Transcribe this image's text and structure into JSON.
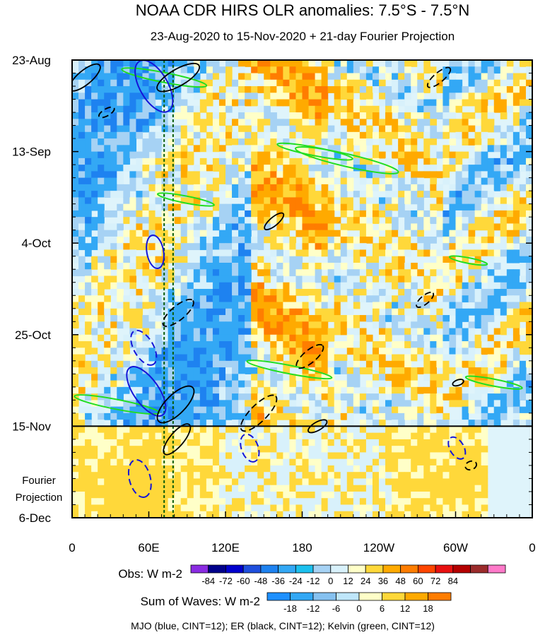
{
  "chart_data": {
    "type": "heatmap",
    "title": "NOAA CDR HIRS OLR anomalies: 7.5°S - 7.5°N",
    "subtitle": "23-Aug-2020 to 15-Nov-2020 + 21-day Fourier Projection",
    "x_ticks": [
      {
        "lon": 0,
        "label": "0"
      },
      {
        "lon": 60,
        "label": "60E"
      },
      {
        "lon": 120,
        "label": "120E"
      },
      {
        "lon": 180,
        "label": "180"
      },
      {
        "lon": 240,
        "label": "120W"
      },
      {
        "lon": 300,
        "label": "60W"
      },
      {
        "lon": 360,
        "label": "0"
      }
    ],
    "xlim": [
      0,
      360
    ],
    "y_ticks": [
      {
        "day": 0,
        "label": "23-Aug"
      },
      {
        "day": 21,
        "label": "13-Sep"
      },
      {
        "day": 42,
        "label": "4-Oct"
      },
      {
        "day": 63,
        "label": "25-Oct"
      },
      {
        "day": 84,
        "label": "15-Nov"
      },
      {
        "day": 105,
        "label": "6-Dec"
      }
    ],
    "ylim": [
      0,
      105
    ],
    "projection_start_day": 84,
    "projection_label_lines": [
      "Fourier",
      "Projection"
    ],
    "dashed_meridians_lon": [
      72,
      79
    ],
    "obs_colorbar": {
      "label": "Obs: W m-2",
      "ticks": [
        "-84",
        "-72",
        "-60",
        "-48",
        "-36",
        "-24",
        "-12",
        "0",
        "12",
        "24",
        "36",
        "48",
        "60",
        "72",
        "84"
      ],
      "colors": [
        "#8a2be2",
        "#00008b",
        "#0000cd",
        "#1f4fdd",
        "#1e82f0",
        "#33a8f5",
        "#1cc0ee",
        "#a6d2f4",
        "#d8f1fb",
        "#ffffc8",
        "#ffd83a",
        "#ffaa00",
        "#ff7d00",
        "#ff4500",
        "#e81010",
        "#b40000",
        "#9b2b2b",
        "#ff79c9"
      ]
    },
    "waves_colorbar": {
      "label": "Sum of Waves: W m-2",
      "ticks": [
        "-18",
        "-12",
        "-6",
        "0",
        "6",
        "12",
        "18"
      ],
      "colors": [
        "#1e90ff",
        "#33a8f5",
        "#86c1f0",
        "#bfe6fb",
        "#ffffc8",
        "#ffd83a",
        "#ffaa00",
        "#ff7d00"
      ]
    },
    "footer": "MJO (blue, CINT=12); ER (black, CINT=12); Kelvin (green, CINT=12)",
    "colors": {
      "mjo": "#1515d8",
      "er": "#000000",
      "kelvin": "#22dd22",
      "dashed_meridian": "#0a5c0a"
    },
    "mjo_contours": [
      {
        "lon": 64,
        "day": 6,
        "a": 6,
        "b": 2.0,
        "deg": 60,
        "dashed": false
      },
      {
        "lon": 58,
        "day": 76,
        "a": 6,
        "b": 1.8,
        "deg": 55,
        "dashed": false
      },
      {
        "lon": 65,
        "day": 44,
        "a": 3.5,
        "b": 1.2,
        "deg": 80,
        "dashed": false
      },
      {
        "lon": 56,
        "day": 66,
        "a": 4,
        "b": 1.4,
        "deg": 60,
        "dashed": true
      },
      {
        "lon": 53,
        "day": 96,
        "a": 4,
        "b": 1.5,
        "deg": 75,
        "dashed": true
      },
      {
        "lon": 139,
        "day": 89,
        "a": 3,
        "b": 1.2,
        "deg": 70,
        "dashed": true
      },
      {
        "lon": 301,
        "day": 89,
        "a": 2.5,
        "b": 1.0,
        "deg": 60,
        "dashed": true
      }
    ],
    "er_contours": [
      {
        "lon": 10,
        "day": 4,
        "a": 4,
        "b": 1.0,
        "deg": -40,
        "dashed": false
      },
      {
        "lon": 27,
        "day": 12,
        "a": 1.8,
        "b": 0.5,
        "deg": -30,
        "dashed": true
      },
      {
        "lon": 83,
        "day": 4,
        "a": 5,
        "b": 1.2,
        "deg": -30,
        "dashed": false
      },
      {
        "lon": 158,
        "day": 37,
        "a": 2.5,
        "b": 0.6,
        "deg": -40,
        "dashed": false
      },
      {
        "lon": 83,
        "day": 58,
        "a": 4,
        "b": 1.0,
        "deg": -40,
        "dashed": true
      },
      {
        "lon": 81,
        "day": 79,
        "a": 5,
        "b": 1.4,
        "deg": -45,
        "dashed": false
      },
      {
        "lon": 82,
        "day": 87,
        "a": 4,
        "b": 1.0,
        "deg": -50,
        "dashed": false
      },
      {
        "lon": 186,
        "day": 68,
        "a": 3.5,
        "b": 0.9,
        "deg": -40,
        "dashed": true
      },
      {
        "lon": 146,
        "day": 81,
        "a": 5,
        "b": 1.2,
        "deg": -45,
        "dashed": true
      },
      {
        "lon": 287,
        "day": 4,
        "a": 3,
        "b": 0.7,
        "deg": -40,
        "dashed": true
      },
      {
        "lon": 276,
        "day": 55,
        "a": 2.2,
        "b": 0.6,
        "deg": -40,
        "dashed": true
      },
      {
        "lon": 302,
        "day": 74,
        "a": 1.2,
        "b": 0.4,
        "deg": -20,
        "dashed": false
      },
      {
        "lon": 192,
        "day": 84,
        "a": 2.2,
        "b": 0.6,
        "deg": -30,
        "dashed": false
      },
      {
        "lon": 312,
        "day": 93,
        "a": 1.2,
        "b": 0.6,
        "deg": -20,
        "dashed": true
      }
    ],
    "kelvin_contours": [
      {
        "lon": 72,
        "day": 4,
        "a": 9,
        "b": 0.7,
        "deg": 11,
        "dashed": false
      },
      {
        "lon": 215,
        "day": 23,
        "a": 11,
        "b": 0.9,
        "deg": 13,
        "dashed": false
      },
      {
        "lon": 190,
        "day": 21,
        "a": 8,
        "b": 0.6,
        "deg": 11,
        "dashed": false
      },
      {
        "lon": 89,
        "day": 32,
        "a": 6,
        "b": 0.5,
        "deg": 11,
        "dashed": false
      },
      {
        "lon": 310,
        "day": 46,
        "a": 4,
        "b": 0.4,
        "deg": 11,
        "dashed": false
      },
      {
        "lon": 170,
        "day": 71,
        "a": 9,
        "b": 0.6,
        "deg": 11,
        "dashed": false
      },
      {
        "lon": 35,
        "day": 79,
        "a": 9,
        "b": 0.7,
        "deg": 11,
        "dashed": false
      },
      {
        "lon": 330,
        "day": 74,
        "a": 6,
        "b": 0.5,
        "deg": 11,
        "dashed": false
      }
    ]
  }
}
